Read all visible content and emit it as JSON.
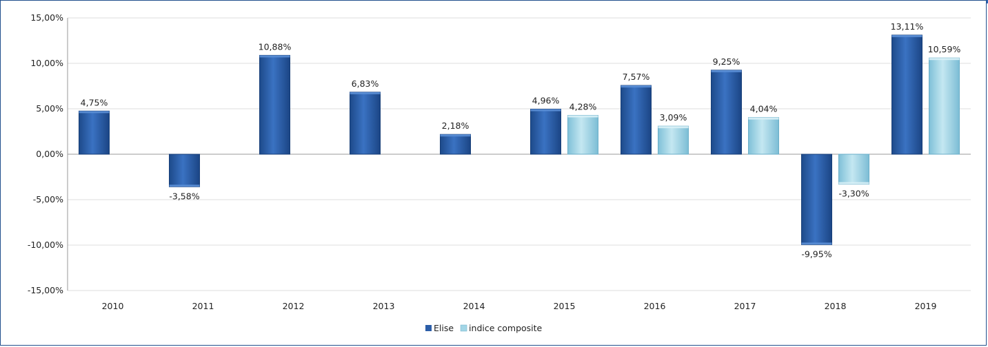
{
  "chart_data": {
    "type": "bar",
    "categories": [
      "2010",
      "2011",
      "2012",
      "2013",
      "2014",
      "2015",
      "2016",
      "2017",
      "2018",
      "2019"
    ],
    "series": [
      {
        "name": "Elise",
        "color": "#2c5ea8",
        "values": [
          4.75,
          -3.58,
          10.88,
          6.83,
          2.18,
          4.96,
          7.57,
          9.25,
          -9.95,
          13.11
        ],
        "labels": [
          "4,75%",
          "-3,58%",
          "10,88%",
          "6,83%",
          "2,18%",
          "4,96%",
          "7,57%",
          "9,25%",
          "-9,95%",
          "13,11%"
        ]
      },
      {
        "name": "indice composite",
        "color": "#a3d6e6",
        "values": [
          null,
          null,
          null,
          null,
          null,
          4.28,
          3.09,
          4.04,
          -3.3,
          10.59
        ],
        "labels": [
          "",
          "",
          "",
          "",
          "",
          "4,28%",
          "3,09%",
          "4,04%",
          "-3,30%",
          "10,59%"
        ]
      }
    ],
    "ylim": [
      -15,
      15
    ],
    "yticks": [
      15,
      10,
      5,
      0,
      -5,
      -10,
      -15
    ],
    "ytick_labels": [
      "15,00%",
      "10,00%",
      "5,00%",
      "0,00%",
      "-5,00%",
      "-10,00%",
      "-15,00%"
    ],
    "title": "",
    "xlabel": "",
    "ylabel": "",
    "grid": true,
    "legend": "bottom-center"
  }
}
